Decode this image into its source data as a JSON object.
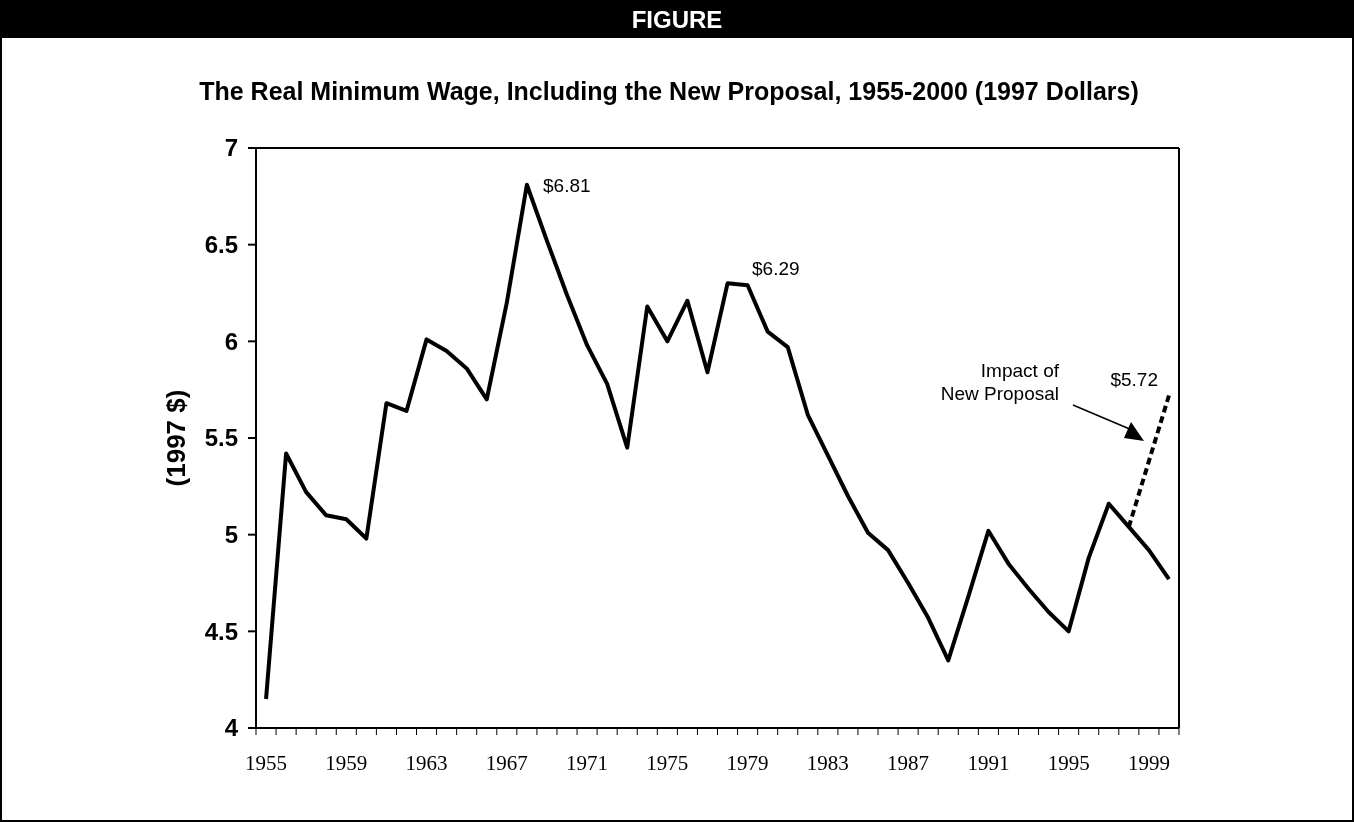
{
  "chart_data": {
    "type": "line",
    "title": "FIGURE",
    "subtitle": "The Real Minimum Wage, Including the New Proposal, 1955-2000 (1997 Dollars)",
    "ylabel": "(1997 $)",
    "categories": [
      "1955",
      null,
      null,
      null,
      "1959",
      null,
      null,
      null,
      "1963",
      null,
      null,
      null,
      "1967",
      null,
      null,
      null,
      "1971",
      null,
      null,
      null,
      "1975",
      null,
      null,
      null,
      "1979",
      null,
      null,
      null,
      "1983",
      null,
      null,
      null,
      "1987",
      null,
      null,
      null,
      "1991",
      null,
      null,
      null,
      "1995",
      null,
      null,
      null,
      "1999",
      null
    ],
    "series": [
      {
        "color": "#000000",
        "line_style": "solid",
        "values": [
          4.15,
          5.42,
          5.22,
          5.1,
          5.08,
          4.98,
          5.68,
          5.64,
          6.01,
          5.95,
          5.86,
          5.7,
          6.2,
          6.81,
          6.52,
          6.24,
          5.98,
          5.78,
          5.45,
          6.18,
          6.0,
          6.21,
          5.84,
          6.3,
          6.29,
          6.05,
          5.97,
          5.62,
          5.41,
          5.2,
          5.01,
          4.92,
          4.75,
          4.57,
          4.35,
          4.68,
          5.02,
          4.85,
          4.72,
          4.6,
          4.5,
          4.88,
          5.16,
          5.04,
          4.92,
          4.77
        ]
      },
      {
        "color": "#000000",
        "line_style": "dashed",
        "values": [
          null,
          null,
          null,
          null,
          null,
          null,
          null,
          null,
          null,
          null,
          null,
          null,
          null,
          null,
          null,
          null,
          null,
          null,
          null,
          null,
          null,
          null,
          null,
          null,
          null,
          null,
          null,
          null,
          null,
          null,
          null,
          null,
          null,
          null,
          null,
          null,
          null,
          null,
          null,
          null,
          null,
          null,
          null,
          5.04,
          null,
          5.72
        ]
      }
    ],
    "ylim": [
      4,
      7
    ],
    "yticks": [
      4,
      4.5,
      5,
      5.5,
      6,
      6.5,
      7
    ],
    "grid": false,
    "marker": "none",
    "annotations": [
      "$6.81",
      "$6.29",
      "$5.72",
      "Impact of New Proposal"
    ]
  }
}
